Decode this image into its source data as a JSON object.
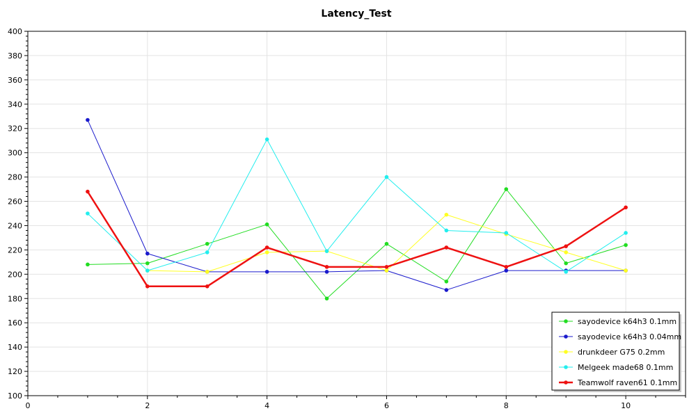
{
  "chart_data": {
    "type": "line",
    "title": "Latency_Test",
    "xlabel": "",
    "ylabel": "",
    "xlim": [
      0,
      11
    ],
    "ylim": [
      100,
      400
    ],
    "x_ticks": [
      0,
      2,
      4,
      6,
      8,
      10
    ],
    "y_ticks": [
      100,
      120,
      140,
      160,
      180,
      200,
      220,
      240,
      260,
      280,
      300,
      320,
      340,
      360,
      380,
      400
    ],
    "grid": true,
    "legend_position": "bottom-right",
    "x": [
      1,
      2,
      3,
      4,
      5,
      6,
      7,
      8,
      9,
      10
    ],
    "series": [
      {
        "name": "sayodevice k64h3 0.1mm",
        "color": "#22dd22",
        "values": [
          208,
          209,
          225,
          241,
          180,
          225,
          194,
          270,
          209,
          224
        ]
      },
      {
        "name": "sayodevice k64h3 0.04mm",
        "color": "#1a1acc",
        "values": [
          327,
          217,
          202,
          202,
          202,
          203,
          187,
          203,
          203,
          203
        ]
      },
      {
        "name": "drunkdeer G75 0.2mm",
        "color": "#ffff22",
        "values": [
          null,
          203,
          202,
          218,
          219,
          203,
          249,
          233,
          218,
          203
        ]
      },
      {
        "name": "Melgeek made68 0.1mm",
        "color": "#22eeee",
        "values": [
          250,
          203,
          218,
          311,
          219,
          280,
          236,
          234,
          202,
          234
        ]
      },
      {
        "name": "Teamwolf raven61 0.1mm",
        "color": "#ee1111",
        "values": [
          268,
          190,
          190,
          222,
          206,
          206,
          222,
          206,
          223,
          255
        ]
      }
    ]
  }
}
